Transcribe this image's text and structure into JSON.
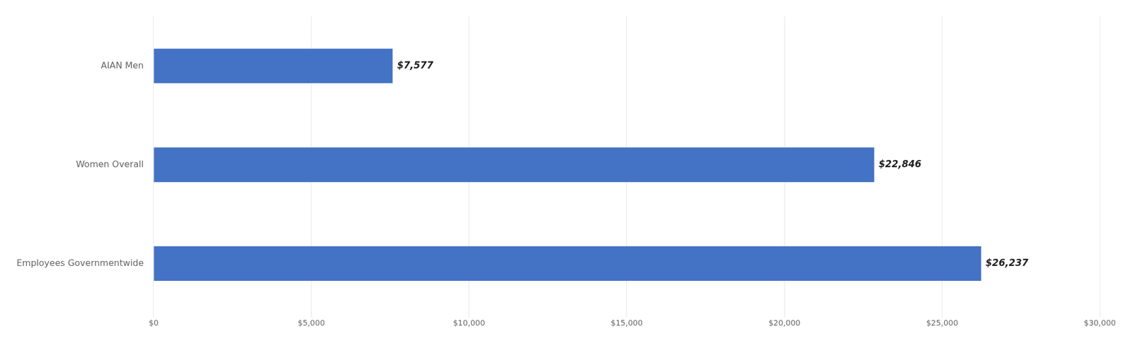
{
  "chart_data": {
    "type": "bar",
    "orientation": "horizontal",
    "categories": [
      "AIAN Men",
      "Women Overall",
      "Employees Governmentwide"
    ],
    "values": [
      7577,
      22846,
      26237
    ],
    "value_labels": [
      "$7,577",
      "$22,846",
      "$26,237"
    ],
    "data_labels": true,
    "color": "#4472C4",
    "xlim": [
      0,
      30000
    ],
    "xticks": [
      {
        "value": 0,
        "label": "$0"
      },
      {
        "value": 5000,
        "label": "$5,000"
      },
      {
        "value": 10000,
        "label": "$10,000"
      },
      {
        "value": 15000,
        "label": "$15,000"
      },
      {
        "value": 20000,
        "label": "$20,000"
      },
      {
        "value": 25000,
        "label": "$25,000"
      },
      {
        "value": 30000,
        "label": "$30,000"
      }
    ],
    "grid": true
  }
}
